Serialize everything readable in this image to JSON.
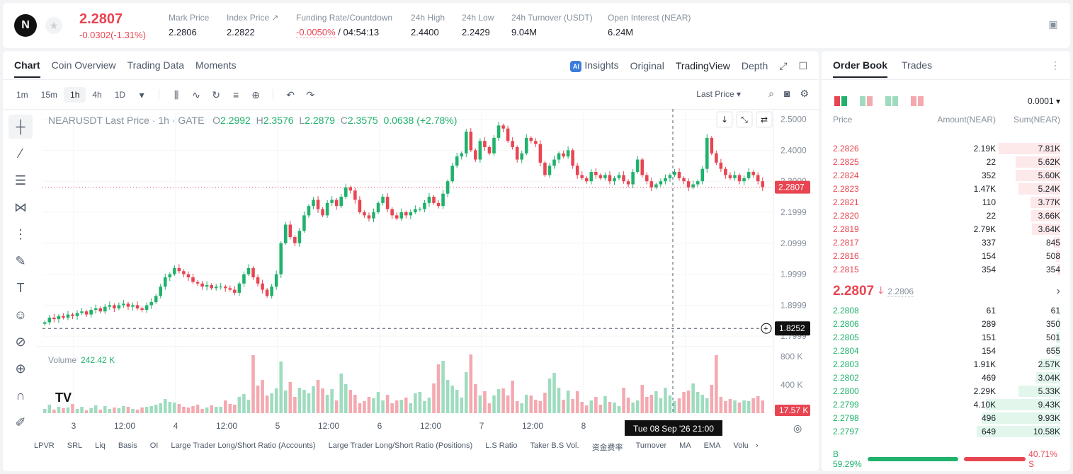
{
  "header": {
    "logo": "N",
    "price": "2.2807",
    "change": "-0.0302(-1.31%)",
    "stats": [
      {
        "label": "Mark Price",
        "value": "2.2806"
      },
      {
        "label": "Index Price ↗",
        "value": "2.2822"
      },
      {
        "label": "Funding Rate/Countdown",
        "value_red": "-0.0050%",
        "value": " / 04:54:13"
      },
      {
        "label": "24h High",
        "value": "2.4400"
      },
      {
        "label": "24h Low",
        "value": "2.2429"
      },
      {
        "label": "24h Turnover (USDT)",
        "value": "9.04M"
      },
      {
        "label": "Open Interest (NEAR)",
        "value": "6.24M"
      }
    ]
  },
  "chart_tabs": [
    "Chart",
    "Coin Overview",
    "Trading Data",
    "Moments"
  ],
  "view_tabs": {
    "insights": "Insights",
    "ai_badge": "AI",
    "items": [
      "Original",
      "TradingView",
      "Depth"
    ]
  },
  "timeframes": [
    "1m",
    "15m",
    "1h",
    "4h",
    "1D"
  ],
  "last_price_label": "Last Price",
  "legend": {
    "symbol": "NEARUSDT Last Price · 1h · GATE",
    "o_label": "O",
    "o": "2.2992",
    "h_label": "H",
    "h": "2.3576",
    "l_label": "L",
    "l": "2.2879",
    "c_label": "C",
    "c": "2.3575",
    "chg": "0.0638 (+2.78%)"
  },
  "volume_legend": {
    "label": "Volume",
    "value": "242.42 K"
  },
  "indicators": [
    "LPVR",
    "SRL",
    "Liq",
    "Basis",
    "OI",
    "Large Trader Long/Short Ratio (Accounts)",
    "Large Trader Long/Short Ratio (Positions)",
    "L.S Ratio",
    "Taker B.S Vol.",
    "资金费率",
    "Turnover",
    "MA",
    "EMA",
    "Volu"
  ],
  "crosshair": {
    "price": "1.8252",
    "time": "Tue 08 Sep '26   21:00"
  },
  "last_price_tag": "2.2807",
  "volume_tag": "17.57 K",
  "chart_data": {
    "type": "candlestick",
    "price_axis_ticks": [
      "2.5000",
      "2.4000",
      "2.3000",
      "2.1999",
      "2.0999",
      "1.9999",
      "1.8999",
      "1.7999"
    ],
    "volume_axis_ticks": [
      "800 K",
      "400 K"
    ],
    "x_ticks": [
      "3",
      "12:00",
      "4",
      "12:00",
      "5",
      "12:00",
      "6",
      "12:00",
      "7",
      "12:00",
      "8",
      "12:00"
    ],
    "ylim": [
      1.78,
      2.515
    ],
    "closes": [
      1.845,
      1.86,
      1.855,
      1.865,
      1.86,
      1.87,
      1.865,
      1.875,
      1.88,
      1.87,
      1.885,
      1.89,
      1.88,
      1.895,
      1.9,
      1.89,
      1.9,
      1.905,
      1.895,
      1.9,
      1.89,
      1.885,
      1.9,
      1.91,
      1.93,
      1.96,
      1.99,
      2.0,
      2.02,
      2.01,
      2.0,
      1.99,
      1.975,
      1.97,
      1.96,
      1.965,
      1.955,
      1.96,
      1.96,
      1.955,
      1.95,
      1.94,
      1.97,
      2.0,
      2.02,
      1.99,
      1.97,
      1.95,
      1.93,
      1.96,
      2.0,
      2.1,
      2.16,
      2.12,
      2.1,
      2.14,
      2.19,
      2.22,
      2.24,
      2.21,
      2.19,
      2.23,
      2.24,
      2.22,
      2.25,
      2.28,
      2.27,
      2.24,
      2.2,
      2.19,
      2.18,
      2.2,
      2.23,
      2.25,
      2.21,
      2.19,
      2.18,
      2.2,
      2.19,
      2.2,
      2.21,
      2.21,
      2.23,
      2.25,
      2.23,
      2.22,
      2.26,
      2.3,
      2.35,
      2.38,
      2.39,
      2.46,
      2.4,
      2.37,
      2.43,
      2.41,
      2.39,
      2.44,
      2.48,
      2.47,
      2.43,
      2.41,
      2.37,
      2.39,
      2.44,
      2.43,
      2.42,
      2.36,
      2.32,
      2.35,
      2.37,
      2.39,
      2.38,
      2.4,
      2.35,
      2.32,
      2.31,
      2.3,
      2.33,
      2.32,
      2.31,
      2.32,
      2.3,
      2.31,
      2.32,
      2.3,
      2.29,
      2.33,
      2.37,
      2.32,
      2.3,
      2.28,
      2.29,
      2.3,
      2.31,
      2.32,
      2.33,
      2.31,
      2.3,
      2.28,
      2.29,
      2.3,
      2.34,
      2.44,
      2.39,
      2.36,
      2.34,
      2.32,
      2.31,
      2.32,
      2.3,
      2.31,
      2.33,
      2.32,
      2.3,
      2.2807
    ],
    "volumes": [
      60,
      120,
      50,
      90,
      70,
      80,
      130,
      60,
      90,
      40,
      70,
      110,
      50,
      100,
      60,
      80,
      70,
      100,
      90,
      60,
      50,
      80,
      90,
      100,
      120,
      140,
      200,
      160,
      150,
      130,
      90,
      80,
      100,
      120,
      60,
      80,
      110,
      90,
      90,
      180,
      130,
      120,
      230,
      270,
      190,
      820,
      390,
      470,
      250,
      280,
      350,
      730,
      320,
      440,
      230,
      360,
      330,
      280,
      380,
      470,
      350,
      260,
      340,
      180,
      560,
      410,
      330,
      260,
      140,
      170,
      230,
      210,
      300,
      180,
      260,
      140,
      180,
      190,
      220,
      140,
      280,
      300,
      170,
      220,
      420,
      690,
      740,
      470,
      390,
      330,
      220,
      580,
      830,
      410,
      250,
      310,
      140,
      250,
      340,
      350,
      250,
      460,
      170,
      140,
      260,
      250,
      190,
      170,
      290,
      490,
      570,
      360,
      190,
      320,
      200,
      310,
      160,
      110,
      180,
      230,
      120,
      240,
      160,
      150,
      100,
      360,
      220,
      150,
      180,
      400,
      230,
      260,
      310,
      210,
      360,
      250,
      170,
      210,
      300,
      320,
      420,
      300,
      260,
      210,
      400,
      820,
      230,
      170,
      200,
      180,
      150,
      180,
      170,
      210,
      240,
      180
    ]
  },
  "ob": {
    "tabs": [
      "Order Book",
      "Trades"
    ],
    "precision": "0.0001",
    "headers": [
      "Price",
      "Amount(NEAR)",
      "Sum(NEAR)"
    ],
    "asks": [
      {
        "p": "2.2826",
        "a": "2.19K",
        "s": "7.81K",
        "w": 0.74
      },
      {
        "p": "2.2825",
        "a": "22",
        "s": "5.62K",
        "w": 0.53
      },
      {
        "p": "2.2824",
        "a": "352",
        "s": "5.60K",
        "w": 0.53
      },
      {
        "p": "2.2823",
        "a": "1.47K",
        "s": "5.24K",
        "w": 0.5
      },
      {
        "p": "2.2821",
        "a": "110",
        "s": "3.77K",
        "w": 0.36
      },
      {
        "p": "2.2820",
        "a": "22",
        "s": "3.66K",
        "w": 0.35
      },
      {
        "p": "2.2819",
        "a": "2.79K",
        "s": "3.64K",
        "w": 0.34
      },
      {
        "p": "2.2817",
        "a": "337",
        "s": "845",
        "w": 0.08
      },
      {
        "p": "2.2816",
        "a": "154",
        "s": "508",
        "w": 0.05
      },
      {
        "p": "2.2815",
        "a": "354",
        "s": "354",
        "w": 0.03
      }
    ],
    "last": "2.2807",
    "mark": "2.2806",
    "bids": [
      {
        "p": "2.2808",
        "a": "61",
        "s": "61",
        "w": 0.01
      },
      {
        "p": "2.2806",
        "a": "289",
        "s": "350",
        "w": 0.03
      },
      {
        "p": "2.2805",
        "a": "151",
        "s": "501",
        "w": 0.05
      },
      {
        "p": "2.2804",
        "a": "154",
        "s": "655",
        "w": 0.06
      },
      {
        "p": "2.2803",
        "a": "1.91K",
        "s": "2.57K",
        "w": 0.24
      },
      {
        "p": "2.2802",
        "a": "469",
        "s": "3.04K",
        "w": 0.29
      },
      {
        "p": "2.2800",
        "a": "2.29K",
        "s": "5.33K",
        "w": 0.5
      },
      {
        "p": "2.2799",
        "a": "4.10K",
        "s": "9.43K",
        "w": 0.89
      },
      {
        "p": "2.2798",
        "a": "496",
        "s": "9.93K",
        "w": 0.94
      },
      {
        "p": "2.2797",
        "a": "649",
        "s": "10.58K",
        "w": 1.0
      }
    ],
    "buy_ratio": "B 59.29%",
    "sell_ratio": "40.71% S",
    "buy_frac": 0.5929
  },
  "colors": {
    "up": "#20b26c",
    "down": "#e84552",
    "up_light": "#9fdcbf",
    "down_light": "#f4a9b0"
  }
}
